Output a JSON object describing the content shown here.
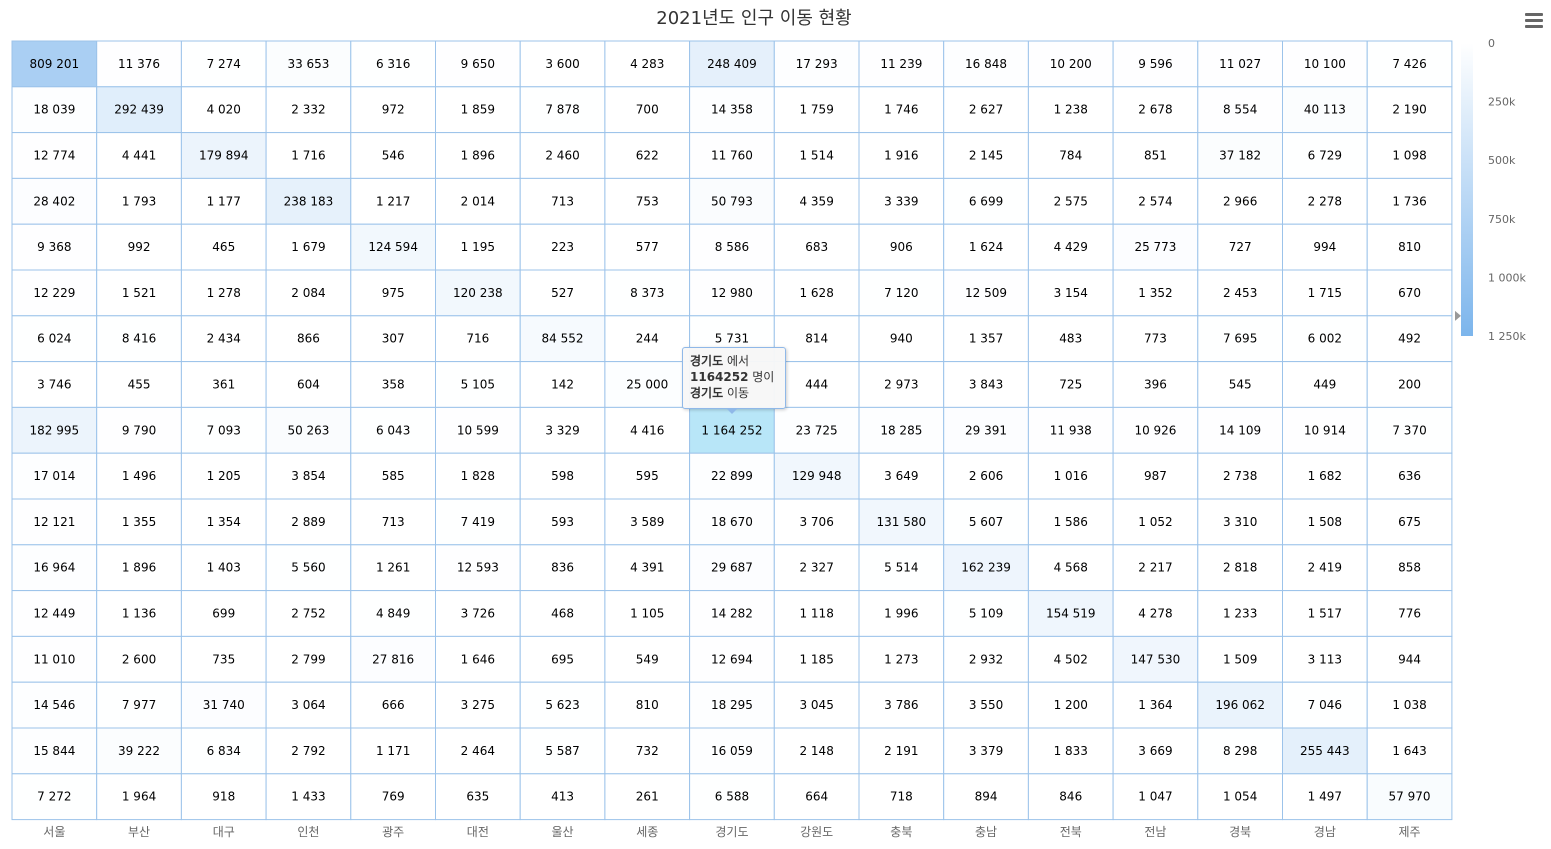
{
  "chart_data": {
    "type": "heatmap",
    "title": "2021년도 인구 이동 현황",
    "categories": [
      "서울",
      "부산",
      "대구",
      "인천",
      "광주",
      "대전",
      "울산",
      "세종",
      "경기도",
      "강원도",
      "충북",
      "충남",
      "전북",
      "전남",
      "경북",
      "경남",
      "제주"
    ],
    "rows": [
      [
        "809 201",
        "11 376",
        "7 274",
        "33 653",
        "6 316",
        "9 650",
        "3 600",
        "4 283",
        "248 409",
        "17 293",
        "11 239",
        "16 848",
        "10 200",
        "9 596",
        "11 027",
        "10 100",
        "7 426"
      ],
      [
        "18 039",
        "292 439",
        "4 020",
        "2 332",
        "972",
        "1 859",
        "7 878",
        "700",
        "14 358",
        "1 759",
        "1 746",
        "2 627",
        "1 238",
        "2 678",
        "8 554",
        "40 113",
        "2 190"
      ],
      [
        "12 774",
        "4 441",
        "179 894",
        "1 716",
        "546",
        "1 896",
        "2 460",
        "622",
        "11 760",
        "1 514",
        "1 916",
        "2 145",
        "784",
        "851",
        "37 182",
        "6 729",
        "1 098"
      ],
      [
        "28 402",
        "1 793",
        "1 177",
        "238 183",
        "1 217",
        "2 014",
        "713",
        "753",
        "50 793",
        "4 359",
        "3 339",
        "6 699",
        "2 575",
        "2 574",
        "2 966",
        "2 278",
        "1 736"
      ],
      [
        "9 368",
        "992",
        "465",
        "1 679",
        "124 594",
        "1 195",
        "223",
        "577",
        "8 586",
        "683",
        "906",
        "1 624",
        "4 429",
        "25 773",
        "727",
        "994",
        "810"
      ],
      [
        "12 229",
        "1 521",
        "1 278",
        "2 084",
        "975",
        "120 238",
        "527",
        "8 373",
        "12 980",
        "1 628",
        "7 120",
        "12 509",
        "3 154",
        "1 352",
        "2 453",
        "1 715",
        "670"
      ],
      [
        "6 024",
        "8 416",
        "2 434",
        "866",
        "307",
        "716",
        "84 552",
        "244",
        "5 731",
        "814",
        "940",
        "1 357",
        "483",
        "773",
        "7 695",
        "6 002",
        "492"
      ],
      [
        "3 746",
        "455",
        "361",
        "604",
        "358",
        "5 105",
        "142",
        "25 000",
        "",
        "444",
        "2 973",
        "3 843",
        "725",
        "396",
        "545",
        "449",
        "200"
      ],
      [
        "182 995",
        "9 790",
        "7 093",
        "50 263",
        "6 043",
        "10 599",
        "3 329",
        "4 416",
        "1 164 252",
        "23 725",
        "18 285",
        "29 391",
        "11 938",
        "10 926",
        "14 109",
        "10 914",
        "7 370"
      ],
      [
        "17 014",
        "1 496",
        "1 205",
        "3 854",
        "585",
        "1 828",
        "598",
        "595",
        "22 899",
        "129 948",
        "3 649",
        "2 606",
        "1 016",
        "987",
        "2 738",
        "1 682",
        "636"
      ],
      [
        "12 121",
        "1 355",
        "1 354",
        "2 889",
        "713",
        "7 419",
        "593",
        "3 589",
        "18 670",
        "3 706",
        "131 580",
        "5 607",
        "1 586",
        "1 052",
        "3 310",
        "1 508",
        "675"
      ],
      [
        "16 964",
        "1 896",
        "1 403",
        "5 560",
        "1 261",
        "12 593",
        "836",
        "4 391",
        "29 687",
        "2 327",
        "5 514",
        "162 239",
        "4 568",
        "2 217",
        "2 818",
        "2 419",
        "858"
      ],
      [
        "12 449",
        "1 136",
        "699",
        "2 752",
        "4 849",
        "3 726",
        "468",
        "1 105",
        "14 282",
        "1 118",
        "1 996",
        "5 109",
        "154 519",
        "4 278",
        "1 233",
        "1 517",
        "776"
      ],
      [
        "11 010",
        "2 600",
        "735",
        "2 799",
        "27 816",
        "1 646",
        "695",
        "549",
        "12 694",
        "1 185",
        "1 273",
        "2 932",
        "4 502",
        "147 530",
        "1 509",
        "3 113",
        "944"
      ],
      [
        "14 546",
        "7 977",
        "31 740",
        "3 064",
        "666",
        "3 275",
        "5 623",
        "810",
        "18 295",
        "3 045",
        "3 786",
        "3 550",
        "1 200",
        "1 364",
        "196 062",
        "7 046",
        "1 038"
      ],
      [
        "15 844",
        "39 222",
        "6 834",
        "2 792",
        "1 171",
        "2 464",
        "5 587",
        "732",
        "16 059",
        "2 148",
        "2 191",
        "3 379",
        "1 833",
        "3 669",
        "8 298",
        "255 443",
        "1 643"
      ],
      [
        "7 272",
        "1 964",
        "918",
        "1 433",
        "769",
        "635",
        "413",
        "261",
        "6 588",
        "664",
        "718",
        "894",
        "846",
        "1 047",
        "1 054",
        "1 497",
        "57 970"
      ]
    ],
    "color_min": "#ffffff",
    "color_max": "#7cb5ec",
    "hover_color": "#b8e6f8",
    "hover_cell": {
      "row": 8,
      "col": 8
    },
    "color_axis": {
      "min": 0,
      "max": 1250000,
      "labels": [
        "0",
        "250k",
        "500k",
        "750k",
        "1 000k",
        "1 250k"
      ]
    },
    "tooltip": {
      "from": "경기도",
      "from_suffix": " 에서",
      "count": "1164252",
      "count_suffix": " 명이",
      "to": "경기도",
      "to_suffix": " 이동"
    }
  },
  "menu_icon": "hamburger-menu-icon"
}
